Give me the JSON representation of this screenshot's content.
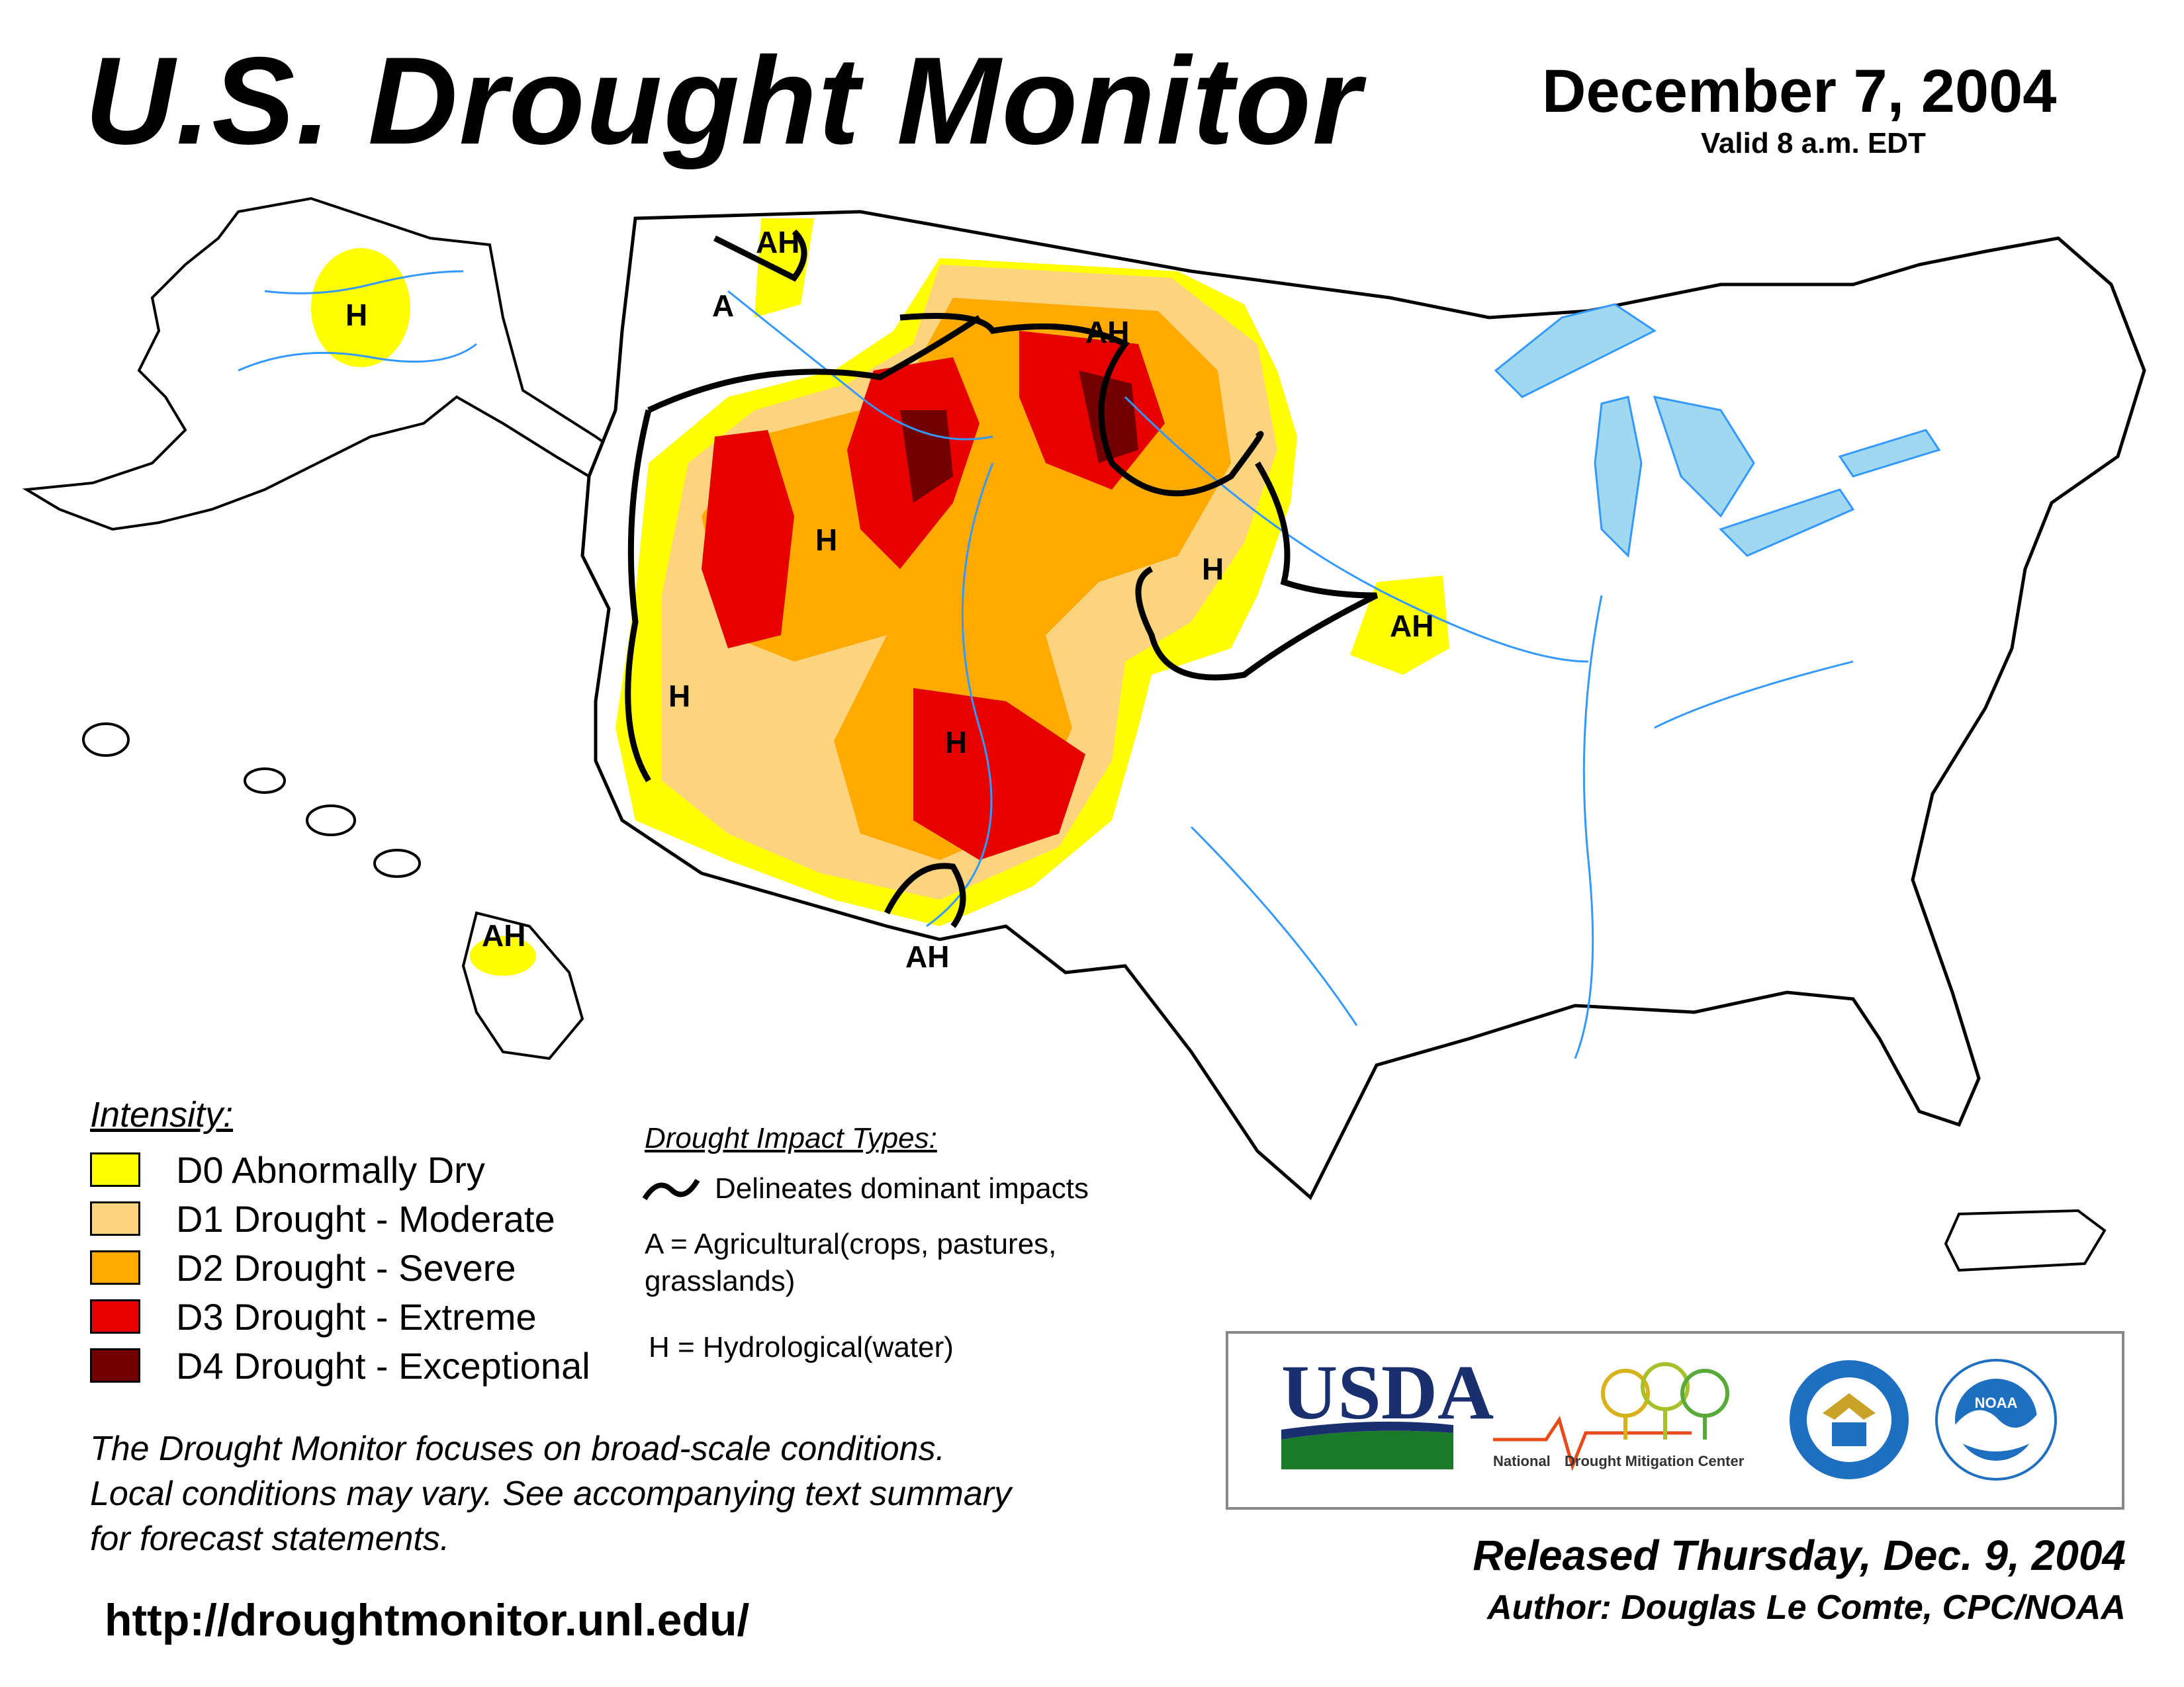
{
  "header": {
    "title": "U.S. Drought Monitor",
    "date": "December 7, 2004",
    "valid": "Valid 8 a.m. EDT"
  },
  "map": {
    "labels": [
      "H",
      "AH",
      "A",
      "AH",
      "H",
      "H",
      "H",
      "AH",
      "H",
      "AH",
      "AH"
    ]
  },
  "legend": {
    "title": "Intensity:",
    "items": [
      {
        "label": "D0 Abnormally Dry",
        "color": "#ffff00"
      },
      {
        "label": "D1 Drought - Moderate",
        "color": "#fcd37f"
      },
      {
        "label": "D2 Drought - Severe",
        "color": "#ffaa00"
      },
      {
        "label": "D3 Drought - Extreme",
        "color": "#e60000"
      },
      {
        "label": "D4 Drought - Exceptional",
        "color": "#730000"
      }
    ]
  },
  "impacts": {
    "title": "Drought Impact Types:",
    "line_label": "Delineates dominant impacts",
    "a_line1": "A = Agricultural(crops, pastures,",
    "a_line2": "grasslands)",
    "h_line": "H = Hydrological(water)"
  },
  "disclaimer": {
    "line1": "The Drought Monitor focuses on broad-scale conditions.",
    "line2": "Local conditions may vary. See accompanying text summary",
    "line3": "for forecast statements."
  },
  "url": "http://droughtmonitor.unl.edu/",
  "logos": {
    "usda": "USDA",
    "ndmc_national": "National",
    "ndmc_rest": "Drought Mitigation Center",
    "noaa": "NOAA"
  },
  "footer": {
    "released": "Released Thursday, Dec. 9, 2004",
    "author": "Author: Douglas Le Comte, CPC/NOAA"
  },
  "colors": {
    "d0": "#ffff00",
    "d1": "#fcd37f",
    "d2": "#ffaa00",
    "d3": "#e60000",
    "d4": "#730000",
    "water": "#9fd8ef",
    "river": "#3399ff",
    "county": "#b0b0b0"
  }
}
